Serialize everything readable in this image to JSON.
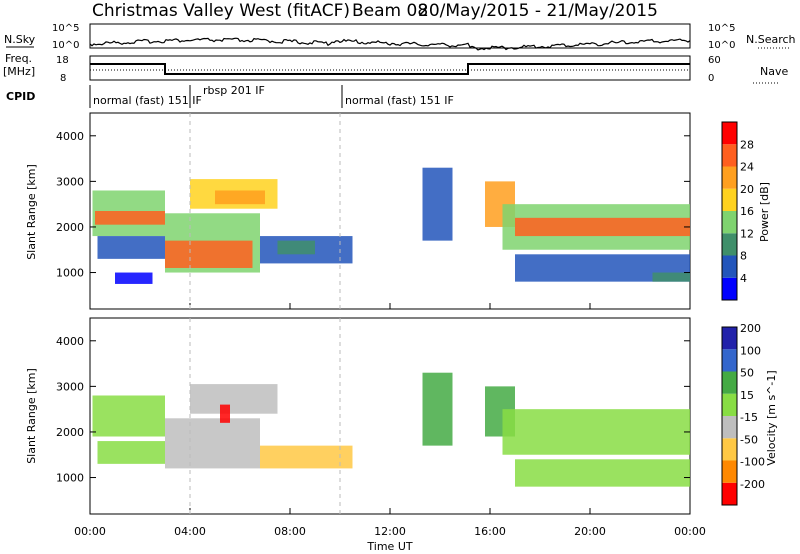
{
  "header": {
    "title": "Christmas Valley West (fitACF)",
    "beam": "Beam 08",
    "dates": "20/May/2015 - 21/May/2015"
  },
  "panels": {
    "nsky": {
      "label": "N.Sky",
      "ticks": [
        "10^5",
        "10^0"
      ],
      "right_label": "N.Search",
      "right_ticks": [
        "10^5",
        "10^0"
      ]
    },
    "freq": {
      "label_line1": "Freq.",
      "label_line2": "[MHz]",
      "ticks": [
        "18",
        "8"
      ],
      "right_label": "Nave",
      "right_ticks": [
        "60",
        "0"
      ]
    },
    "cpid": {
      "label": "CPID",
      "segments": [
        "normal (fast) 151 IF",
        "rbsp 201 IF",
        "normal (fast) 151 IF"
      ]
    }
  },
  "colors": {
    "power": [
      "#0000ff",
      "#2255bb",
      "#3f8f6a",
      "#7fd36f",
      "#ffd21f",
      "#ff9f1f",
      "#ff5f1f",
      "#ff0000"
    ],
    "velocity": [
      "#ff0000",
      "#ff8800",
      "#ffc844",
      "#bebebe",
      "#88dd44",
      "#44aa44",
      "#3366cc",
      "#2222aa"
    ]
  },
  "chart_data": [
    {
      "type": "heatmap",
      "name": "power",
      "xlabel": "Time UT",
      "ylabel": "Slant Range [km]",
      "yticks": [
        1000,
        2000,
        3000,
        4000
      ],
      "colorbar_label": "Power [dB]",
      "colorbar_ticks": [
        4,
        8,
        12,
        16,
        20,
        24,
        28
      ],
      "ylim": [
        200,
        4500
      ],
      "cells": [
        {
          "x": [
            0.1,
            3
          ],
          "y": [
            1800,
            2800
          ],
          "v": 16
        },
        {
          "x": [
            0.2,
            3
          ],
          "y": [
            2050,
            2350
          ],
          "v": 26
        },
        {
          "x": [
            0.3,
            3
          ],
          "y": [
            1300,
            1800
          ],
          "v": 6
        },
        {
          "x": [
            1,
            2.5
          ],
          "y": [
            750,
            1000
          ],
          "v": 5
        },
        {
          "x": [
            3,
            6.8
          ],
          "y": [
            1000,
            2300
          ],
          "v": 14
        },
        {
          "x": [
            3,
            6.5
          ],
          "y": [
            1100,
            1700
          ],
          "v": 26
        },
        {
          "x": [
            4,
            7.5
          ],
          "y": [
            2400,
            3050
          ],
          "v": 18
        },
        {
          "x": [
            5,
            7
          ],
          "y": [
            2500,
            2800
          ],
          "v": 24
        },
        {
          "x": [
            6.8,
            10.5
          ],
          "y": [
            1200,
            1800
          ],
          "v": 6
        },
        {
          "x": [
            7.5,
            9
          ],
          "y": [
            1400,
            1700
          ],
          "v": 10
        },
        {
          "x": [
            13.3,
            14.5
          ],
          "y": [
            1700,
            3300
          ],
          "v": 6
        },
        {
          "x": [
            15.8,
            17
          ],
          "y": [
            2000,
            3000
          ],
          "v": 22
        },
        {
          "x": [
            16.5,
            24
          ],
          "y": [
            1500,
            2500
          ],
          "v": 14
        },
        {
          "x": [
            17,
            24
          ],
          "y": [
            1800,
            2200
          ],
          "v": 26
        },
        {
          "x": [
            17,
            24
          ],
          "y": [
            800,
            1400
          ],
          "v": 6
        },
        {
          "x": [
            22.5,
            24
          ],
          "y": [
            800,
            1000
          ],
          "v": 12
        }
      ]
    },
    {
      "type": "heatmap",
      "name": "velocity",
      "xlabel": "Time UT",
      "ylabel": "Slant Range [km]",
      "yticks": [
        1000,
        2000,
        3000,
        4000
      ],
      "colorbar_label": "Velocity [m s^-1]",
      "colorbar_ticks": [
        -200,
        -100,
        -50,
        -15,
        15,
        50,
        100,
        200
      ],
      "ylim": [
        200,
        4500
      ],
      "cells": [
        {
          "x": [
            0.1,
            3
          ],
          "y": [
            1900,
            2800
          ],
          "v": 0
        },
        {
          "x": [
            0.3,
            3
          ],
          "y": [
            1300,
            1800
          ],
          "v": 0
        },
        {
          "x": [
            3,
            6.8
          ],
          "y": [
            1200,
            2300
          ],
          "v": -30
        },
        {
          "x": [
            4,
            7.5
          ],
          "y": [
            2400,
            3050
          ],
          "v": -30
        },
        {
          "x": [
            5.2,
            5.6
          ],
          "y": [
            2200,
            2600
          ],
          "v": -200
        },
        {
          "x": [
            6.8,
            10.5
          ],
          "y": [
            1200,
            1700
          ],
          "v": -60
        },
        {
          "x": [
            13.3,
            14.5
          ],
          "y": [
            1700,
            3300
          ],
          "v": 30
        },
        {
          "x": [
            15.8,
            17
          ],
          "y": [
            1900,
            3000
          ],
          "v": 30
        },
        {
          "x": [
            16.5,
            24
          ],
          "y": [
            1500,
            2500
          ],
          "v": 0
        },
        {
          "x": [
            17,
            24
          ],
          "y": [
            800,
            1400
          ],
          "v": 0
        }
      ]
    }
  ],
  "xaxis": {
    "label": "Time UT",
    "ticks": [
      "00:00",
      "04:00",
      "08:00",
      "12:00",
      "16:00",
      "20:00",
      "00:00"
    ]
  }
}
